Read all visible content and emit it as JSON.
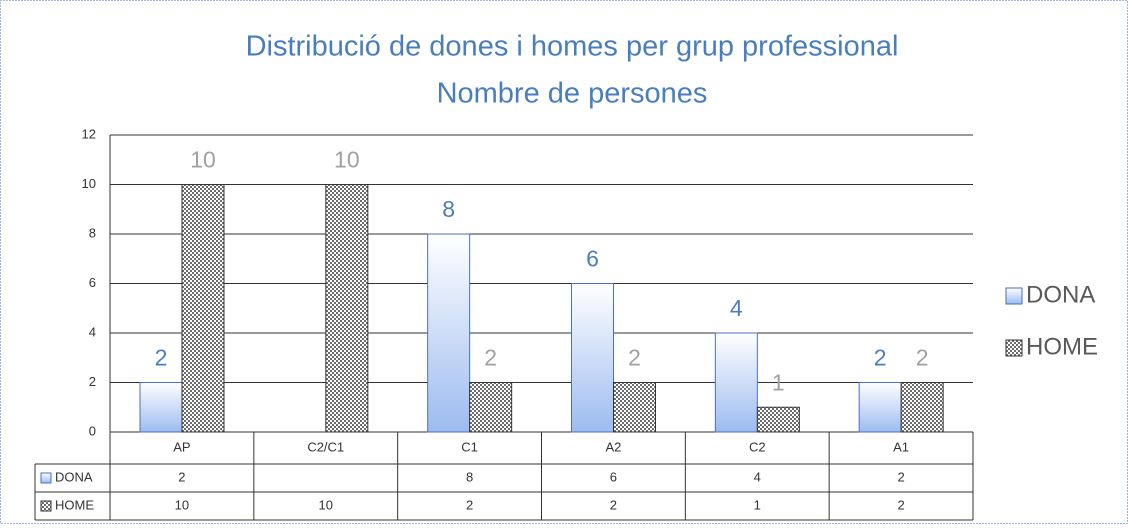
{
  "chart_data": {
    "type": "bar",
    "title": "Distribució de dones i homes per grup professional",
    "subtitle": "Nombre de persones",
    "categories": [
      "AP",
      "C2/C1",
      "C1",
      "A2",
      "C2",
      "A1"
    ],
    "series": [
      {
        "name": "DONA",
        "color": "#4472c4",
        "values": [
          2,
          null,
          8,
          6,
          4,
          2
        ]
      },
      {
        "name": "HOME",
        "color": "#595959",
        "values": [
          10,
          10,
          2,
          2,
          1,
          2
        ]
      }
    ],
    "ylim": [
      0,
      12
    ],
    "yticks": [
      0,
      2,
      4,
      6,
      8,
      10,
      12
    ],
    "grid": true,
    "legend": "right",
    "data_table": true
  }
}
